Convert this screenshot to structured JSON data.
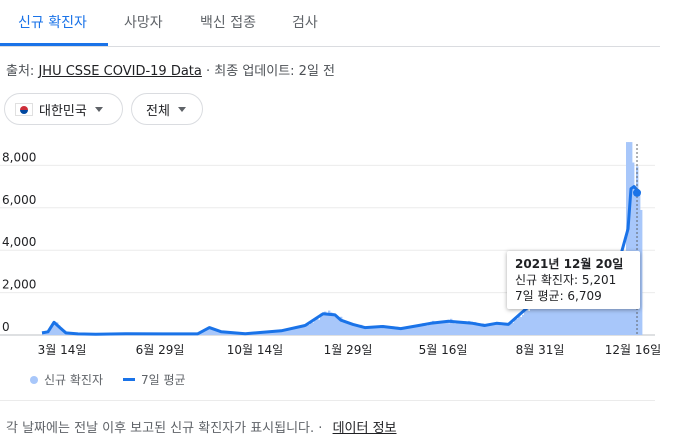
{
  "tabs": [
    {
      "label": "신규 확진자"
    },
    {
      "label": "사망자"
    },
    {
      "label": "백신 접종"
    },
    {
      "label": "검사"
    }
  ],
  "source": {
    "prefix": "출처:",
    "link": "JHU CSSE COVID-19 Data",
    "suffix": "· 최종 업데이트: 2일 전"
  },
  "filters": {
    "country": "대한민국",
    "range": "전체"
  },
  "tooltip": {
    "date": "2021년 12월 20일",
    "cases_label": "신규 확진자: 5,201",
    "avg_label": "7일 평균: 6,709"
  },
  "legend": {
    "cases": "신규 확진자",
    "avg": "7일 평균"
  },
  "footer": {
    "note": "각 날짜에는 전날 이후 보고된 신규 확진자가 표시됩니다.",
    "separator": "·",
    "link": "데이터 정보"
  },
  "colors": {
    "accent": "#1a73e8",
    "bars": "#a8c7fa",
    "line": "#1a73e8"
  },
  "chart_data": {
    "type": "area",
    "x_ticks": [
      "3월 14일",
      "6월 29일",
      "10월 14일",
      "1월 29일",
      "5월 16일",
      "8월 31일",
      "12월 16일"
    ],
    "y_ticks": [
      "0",
      "2,000",
      "4,000",
      "6,000",
      "8,000"
    ],
    "ylim": [
      0,
      9000
    ],
    "series": [
      {
        "name": "7일 평균",
        "x": [
          0,
          0.01,
          0.02,
          0.03,
          0.04,
          0.06,
          0.09,
          0.14,
          0.2,
          0.26,
          0.28,
          0.3,
          0.34,
          0.4,
          0.44,
          0.47,
          0.49,
          0.5,
          0.52,
          0.54,
          0.57,
          0.6,
          0.63,
          0.65,
          0.68,
          0.7,
          0.72,
          0.74,
          0.76,
          0.78,
          0.8,
          0.82,
          0.84,
          0.86,
          0.88,
          0.89,
          0.9,
          0.92,
          0.94,
          0.96,
          0.97,
          0.98,
          0.985,
          0.99,
          1.0
        ],
        "values": [
          100,
          150,
          600,
          350,
          100,
          50,
          40,
          60,
          50,
          50,
          350,
          150,
          60,
          200,
          450,
          1000,
          950,
          700,
          500,
          350,
          400,
          300,
          450,
          550,
          650,
          600,
          550,
          450,
          550,
          500,
          1000,
          1500,
          1700,
          1500,
          1900,
          2600,
          2300,
          1900,
          2500,
          2900,
          4000,
          5000,
          6900,
          7000,
          6700
        ]
      }
    ]
  }
}
